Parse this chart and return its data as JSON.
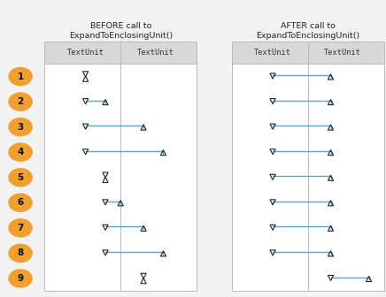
{
  "title_before": "BEFORE call to\nExpandToEnclosingUnit()",
  "title_after": "AFTER call to\nExpandToEnclosingUnit()",
  "header": "TextUnit",
  "bg_color": "#f2f2f2",
  "line_color": "#5ba3c9",
  "marker_color": "#222222",
  "border_color": "#bbbbbb",
  "header_bg": "#d8d8d8",
  "circle_color": "#f0a030",
  "circle_text_color": "#111111",
  "row_labels": [
    "1",
    "2",
    "3",
    "4",
    "5",
    "6",
    "7",
    "8",
    "9"
  ],
  "before_starts_f": [
    0.27,
    0.27,
    0.27,
    0.27,
    0.4,
    0.4,
    0.4,
    0.4,
    0.65
  ],
  "before_ends_f": [
    0.27,
    0.4,
    0.65,
    0.78,
    0.4,
    0.5,
    0.65,
    0.78,
    0.65
  ],
  "after_starts_f": [
    0.27,
    0.27,
    0.27,
    0.27,
    0.27,
    0.27,
    0.27,
    0.27,
    0.65
  ],
  "after_ends_f": [
    0.65,
    0.65,
    0.65,
    0.65,
    0.65,
    0.65,
    0.65,
    0.65,
    0.9
  ]
}
